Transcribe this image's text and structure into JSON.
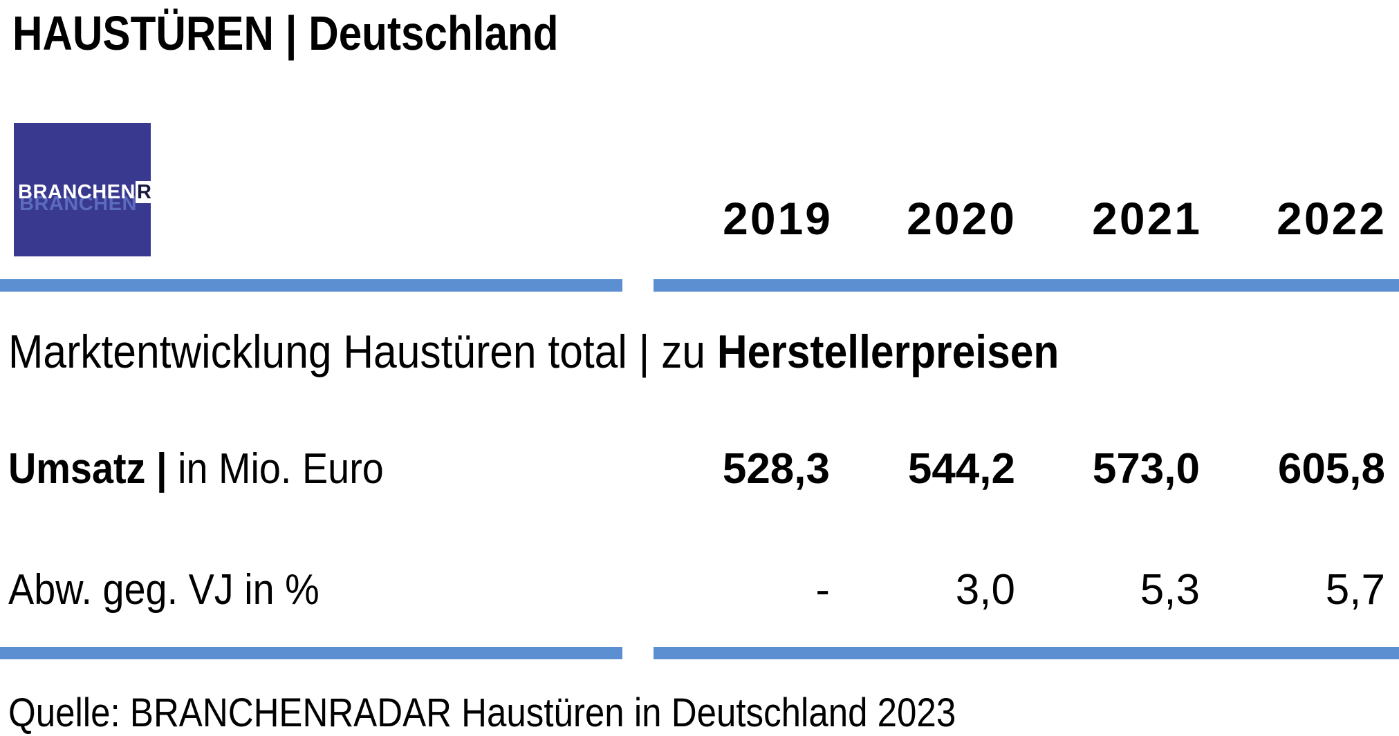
{
  "title": "HAUSTÜREN | Deutschland",
  "logo": {
    "part1": "BRANCHEN",
    "part2": "RADAR"
  },
  "subtitle": {
    "regular": "Marktentwicklung Haustüren total | zu ",
    "bold": "Herstellerpreisen"
  },
  "source": "Quelle: BRANCHENRADAR Haustüren in Deutschland 2023",
  "colors": {
    "rule": "#5b8fd1",
    "logo_bg": "#38398f"
  },
  "chart_data": {
    "type": "table",
    "columns": [
      "2019",
      "2020",
      "2021",
      "2022"
    ],
    "rows": [
      {
        "label_bold": "Umsatz |",
        "label_regular": " in Mio. Euro",
        "values": [
          "528,3",
          "544,2",
          "573,0",
          "605,8"
        ]
      },
      {
        "label_bold": "",
        "label_regular": "Abw. geg. VJ in %",
        "values": [
          "-",
          "3,0",
          "5,3",
          "5,7"
        ]
      }
    ]
  }
}
